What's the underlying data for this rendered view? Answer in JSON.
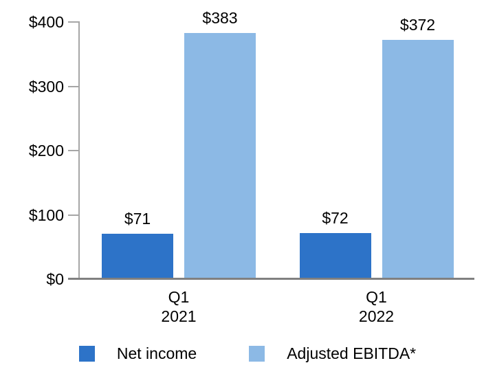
{
  "chart_data": {
    "type": "bar",
    "title": "",
    "categories": [
      "Q1 2021",
      "Q1 2022"
    ],
    "category_lines": [
      [
        "Q1",
        "2021"
      ],
      [
        "Q1",
        "2022"
      ]
    ],
    "series": [
      {
        "name": "Net income",
        "color": "#2d73c8",
        "values": [
          71,
          72
        ],
        "labels": [
          "$71",
          "$72"
        ]
      },
      {
        "name": "Adjusted EBITDA*",
        "color": "#8cb9e5",
        "values": [
          383,
          372
        ],
        "labels": [
          "$383",
          "$372"
        ]
      }
    ],
    "xlabel": "",
    "ylabel": "",
    "ylim": [
      0,
      400
    ],
    "yticks": [
      {
        "value": 0,
        "label": "$0"
      },
      {
        "value": 100,
        "label": "$100"
      },
      {
        "value": 200,
        "label": "$200"
      },
      {
        "value": 300,
        "label": "$300"
      },
      {
        "value": 400,
        "label": "$400"
      }
    ],
    "grid": false,
    "legend_position": "bottom",
    "axis_color": "#a6a6a6",
    "baseline_color": "#808080",
    "text_color": "#000000",
    "background_color": "#ffffff"
  }
}
